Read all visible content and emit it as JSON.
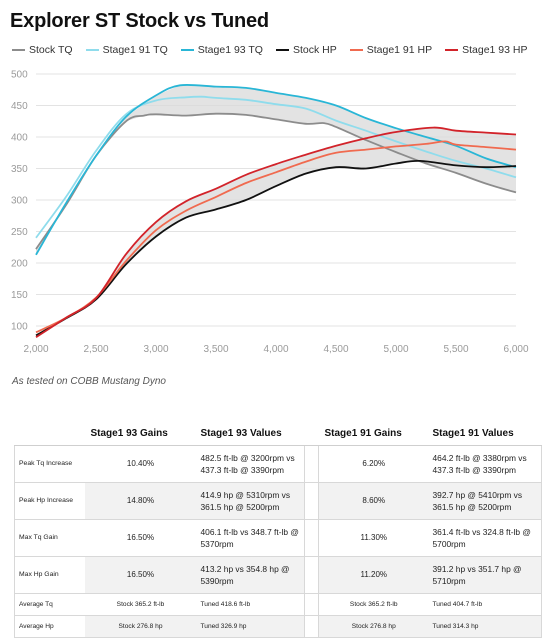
{
  "title": "Explorer ST Stock vs Tuned",
  "caption": "As tested on COBB Mustang Dyno",
  "legend": [
    {
      "name": "Stock TQ",
      "color": "#8c8c8c"
    },
    {
      "name": "Stage1 91 TQ",
      "color": "#8fdcec"
    },
    {
      "name": "Stage1 93 TQ",
      "color": "#29b6d6"
    },
    {
      "name": "Stock HP",
      "color": "#111111"
    },
    {
      "name": "Stage1 91 HP",
      "color": "#f06a4f"
    },
    {
      "name": "Stage1 93 HP",
      "color": "#d2232a"
    }
  ],
  "chart_data": {
    "type": "line",
    "xlim": [
      2000,
      6000
    ],
    "ylim": [
      100,
      500
    ],
    "xticks": [
      "2,000",
      "2,500",
      "3,000",
      "3,500",
      "4,000",
      "4,500",
      "5,000",
      "5,500",
      "6,000"
    ],
    "yticks": [
      "100",
      "150",
      "200",
      "250",
      "300",
      "350",
      "400",
      "450",
      "500"
    ],
    "grid": true,
    "legend_position": "top",
    "shaded_bands": [
      {
        "between": [
          "Stock TQ",
          "Stage1 93 TQ"
        ],
        "color": "#d9d9d9"
      },
      {
        "between": [
          "Stock HP",
          "Stage1 93 HP"
        ],
        "color": "#d9d9d9"
      }
    ],
    "series": [
      {
        "name": "Stock TQ",
        "color": "#8c8c8c",
        "x": [
          2000,
          2250,
          2500,
          2750,
          2900,
          3000,
          3250,
          3500,
          3750,
          4000,
          4250,
          4400,
          4500,
          4750,
          5000,
          5250,
          5500,
          5750,
          6000
        ],
        "y": [
          222,
          292,
          370,
          425,
          434,
          436,
          434,
          437,
          435,
          428,
          421,
          422,
          416,
          395,
          376,
          358,
          343,
          326,
          312
        ]
      },
      {
        "name": "Stage1 91 TQ",
        "color": "#8fdcec",
        "x": [
          2000,
          2250,
          2500,
          2750,
          3000,
          3250,
          3380,
          3500,
          3750,
          4000,
          4250,
          4500,
          4750,
          5000,
          5250,
          5500,
          5750,
          6000
        ],
        "y": [
          240,
          305,
          378,
          436,
          458,
          463,
          464,
          462,
          459,
          452,
          445,
          426,
          410,
          393,
          377,
          362,
          350,
          336
        ]
      },
      {
        "name": "Stage1 93 TQ",
        "color": "#29b6d6",
        "x": [
          2000,
          2250,
          2500,
          2750,
          3000,
          3200,
          3500,
          3750,
          4000,
          4250,
          4500,
          4750,
          5000,
          5250,
          5500,
          5750,
          6000
        ],
        "y": [
          213,
          295,
          370,
          432,
          466,
          482,
          480,
          478,
          470,
          462,
          450,
          430,
          414,
          400,
          386,
          366,
          352
        ]
      },
      {
        "name": "Stock HP",
        "color": "#111111",
        "x": [
          2000,
          2250,
          2500,
          2750,
          3000,
          3250,
          3500,
          3750,
          4000,
          4250,
          4500,
          4750,
          5000,
          5200,
          5500,
          5750,
          6000
        ],
        "y": [
          85,
          112,
          142,
          198,
          242,
          272,
          285,
          300,
          322,
          342,
          352,
          350,
          358,
          362,
          355,
          352,
          354
        ]
      },
      {
        "name": "Stage1 91 HP",
        "color": "#f06a4f",
        "x": [
          2000,
          2250,
          2500,
          2750,
          3000,
          3250,
          3500,
          3750,
          4000,
          4250,
          4500,
          4750,
          5000,
          5250,
          5410,
          5500,
          5750,
          6000
        ],
        "y": [
          90,
          113,
          145,
          203,
          252,
          283,
          305,
          327,
          344,
          361,
          375,
          380,
          385,
          389,
          393,
          388,
          384,
          380
        ]
      },
      {
        "name": "Stage1 93 HP",
        "color": "#d2232a",
        "x": [
          2000,
          2250,
          2500,
          2750,
          3000,
          3250,
          3500,
          3750,
          4000,
          4250,
          4500,
          4750,
          5000,
          5310,
          5500,
          5750,
          6000
        ],
        "y": [
          82,
          113,
          144,
          214,
          265,
          298,
          318,
          340,
          357,
          372,
          386,
          398,
          408,
          415,
          410,
          407,
          404
        ]
      }
    ]
  },
  "table": {
    "headers": [
      "",
      "Stage1 93 Gains",
      "Stage1 93 Values",
      "",
      "Stage1 91 Gains",
      "Stage1 91 Values"
    ],
    "rows": [
      {
        "label": "Peak Tq Increase",
        "g93": "10.40%",
        "v93": "482.5 ft-lb @ 3200rpm vs 437.3 ft-lb @ 3390rpm",
        "g91": "6.20%",
        "v91": "464.2 ft-lb @ 3380rpm vs 437.3 ft-lb @ 3390rpm"
      },
      {
        "label": "Peak Hp Increase",
        "g93": "14.80%",
        "v93": "414.9 hp @ 5310rpm vs 361.5 hp @ 5200rpm",
        "g91": "8.60%",
        "v91": "392.7 hp @ 5410rpm vs 361.5 hp @ 5200rpm"
      },
      {
        "label": "Max Tq Gain",
        "g93": "16.50%",
        "v93": "406.1 ft-lb vs 348.7 ft-lb @ 5370rpm",
        "g91": "11.30%",
        "v91": "361.4 ft-lb vs 324.8 ft-lb @ 5700rpm"
      },
      {
        "label": "Max Hp Gain",
        "g93": "16.50%",
        "v93": "413.2 hp vs 354.8 hp @ 5390rpm",
        "g91": "11.20%",
        "v91": "391.2 hp vs 351.7 hp @ 5710rpm"
      },
      {
        "label": "Average Tq",
        "g93": "Stock 365.2 ft-lb",
        "v93": "Tuned 418.6 ft-lb",
        "g91": "Stock 365.2 ft-lb",
        "v91": "Tuned 404.7 ft-lb"
      },
      {
        "label": "Average Hp",
        "g93": "Stock 276.8 hp",
        "v93": "Tuned 326.9 hp",
        "g91": "Stock 276.8 hp",
        "v91": "Tuned 314.3 hp"
      }
    ]
  }
}
